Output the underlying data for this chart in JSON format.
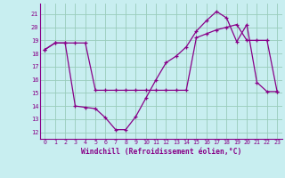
{
  "xlabel": "Windchill (Refroidissement éolien,°C)",
  "xlim": [
    -0.5,
    23.5
  ],
  "ylim": [
    11.5,
    21.8
  ],
  "yticks": [
    12,
    13,
    14,
    15,
    16,
    17,
    18,
    19,
    20,
    21
  ],
  "xticks": [
    0,
    1,
    2,
    3,
    4,
    5,
    6,
    7,
    8,
    9,
    10,
    11,
    12,
    13,
    14,
    15,
    16,
    17,
    18,
    19,
    20,
    21,
    22,
    23
  ],
  "bg_color": "#c8eef0",
  "line_color": "#880088",
  "grid_color": "#99ccbb",
  "series1": {
    "x": [
      0,
      1,
      2,
      3,
      4,
      5,
      6,
      7,
      8,
      9,
      10,
      11,
      12,
      13,
      14,
      15,
      16,
      17,
      18,
      19,
      20,
      21,
      22,
      23
    ],
    "y": [
      18.3,
      18.8,
      18.8,
      14.0,
      13.9,
      13.8,
      13.1,
      12.2,
      12.2,
      13.2,
      14.6,
      16.0,
      17.3,
      17.8,
      18.5,
      19.7,
      20.5,
      21.2,
      20.7,
      18.9,
      20.2,
      15.8,
      15.1,
      15.1
    ]
  },
  "series2": {
    "x": [
      0,
      1,
      2,
      3,
      4,
      5,
      6,
      7,
      8,
      9,
      10,
      11,
      12,
      13,
      14,
      15,
      16,
      17,
      18,
      19,
      20,
      21,
      22,
      23
    ],
    "y": [
      18.3,
      18.8,
      18.8,
      18.8,
      18.8,
      15.2,
      15.2,
      15.2,
      15.2,
      15.2,
      15.2,
      15.2,
      15.2,
      15.2,
      15.2,
      19.2,
      19.5,
      19.8,
      20.0,
      20.2,
      19.0,
      19.0,
      19.0,
      15.1
    ]
  }
}
